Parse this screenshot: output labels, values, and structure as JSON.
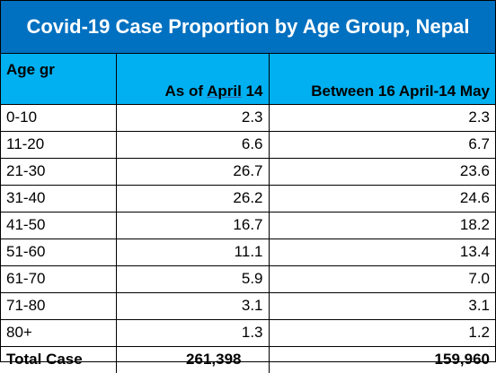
{
  "chart_data": {
    "type": "table",
    "title": "Covid-19 Case Proportion by Age Group, Nepal",
    "columns": {
      "age": "Age gr",
      "a_prefix": "As of ",
      "a_underlined": "April",
      "a_suffix": " 14",
      "b": "Between 16 April-14 May"
    },
    "rows": [
      {
        "age": "0-10",
        "a": "2.3",
        "b": "2.3"
      },
      {
        "age": "11-20",
        "a": "6.6",
        "b": "6.7"
      },
      {
        "age": "21-30",
        "a": "26.7",
        "b": "23.6"
      },
      {
        "age": "31-40",
        "a": "26.2",
        "b": "24.6"
      },
      {
        "age": "41-50",
        "a": "16.7",
        "b": "18.2"
      },
      {
        "age": "51-60",
        "a": "11.1",
        "b": "13.4"
      },
      {
        "age": "61-70",
        "a": "5.9",
        "b": "7.0"
      },
      {
        "age": "71-80",
        "a": "3.1",
        "b": "3.1"
      },
      {
        "age": "80+",
        "a": "1.3",
        "b": "1.2"
      }
    ],
    "total": {
      "label": "Total Case",
      "a": "261,398",
      "b": "159,960"
    },
    "colors": {
      "title_bg": "#0070c0",
      "header_bg": "#00b0f0",
      "title_text": "#ffffff"
    }
  }
}
